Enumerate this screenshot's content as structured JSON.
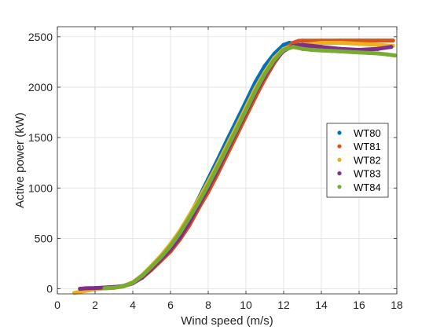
{
  "chart_data": {
    "type": "scatter",
    "title": "",
    "xlabel": "Wind speed (m/s)",
    "ylabel": "Active power (kW)",
    "xlim": [
      0,
      18
    ],
    "ylim": [
      -50,
      2600
    ],
    "xticks": [
      0,
      2,
      4,
      6,
      8,
      10,
      12,
      14,
      16,
      18
    ],
    "yticks": [
      0,
      500,
      1000,
      1500,
      2000,
      2500
    ],
    "grid": true,
    "legend_position": "right",
    "series": [
      {
        "name": "WT80",
        "color": "#0072BD",
        "x": [
          1.5,
          2.0,
          2.5,
          3.0,
          3.5,
          4.0,
          4.5,
          5.0,
          5.5,
          6.0,
          6.5,
          7.0,
          7.5,
          8.0,
          8.5,
          9.0,
          9.5,
          10.0,
          10.5,
          11.0,
          11.5,
          12.0,
          12.3,
          12.6,
          13.0,
          13.5
        ],
        "y": [
          -5,
          0,
          5,
          12,
          25,
          60,
          125,
          210,
          310,
          420,
          555,
          720,
          900,
          1090,
          1280,
          1475,
          1665,
          1855,
          2050,
          2210,
          2330,
          2420,
          2440,
          2430,
          2410,
          2400
        ]
      },
      {
        "name": "WT81",
        "color": "#D95319",
        "x": [
          1.5,
          2.0,
          2.5,
          3.0,
          3.5,
          4.0,
          4.5,
          5.0,
          5.5,
          6.0,
          6.5,
          7.0,
          7.5,
          8.0,
          8.5,
          9.0,
          9.5,
          10.0,
          10.5,
          11.0,
          11.5,
          12.0,
          12.5,
          12.8,
          13.0,
          14.0,
          15.0,
          16.0,
          17.0,
          17.8
        ],
        "y": [
          0,
          3,
          7,
          12,
          25,
          55,
          110,
          190,
          280,
          370,
          490,
          630,
          800,
          960,
          1140,
          1330,
          1520,
          1710,
          1900,
          2080,
          2240,
          2370,
          2440,
          2460,
          2462,
          2462,
          2463,
          2463,
          2463,
          2463
        ]
      },
      {
        "name": "WT82",
        "color": "#EDB120",
        "x": [
          0.9,
          1.2,
          1.5,
          2.0,
          2.5,
          3.0,
          3.5,
          4.0,
          4.5,
          5.0,
          5.5,
          6.0,
          6.5,
          7.0,
          7.5,
          8.0,
          8.5,
          9.0,
          9.5,
          10.0,
          10.5,
          11.0,
          11.5,
          12.0,
          12.5,
          13.0,
          13.5,
          14.0,
          15.0,
          16.0,
          17.0,
          17.8
        ],
        "y": [
          -40,
          -30,
          -20,
          -5,
          5,
          12,
          28,
          65,
          135,
          230,
          330,
          445,
          575,
          730,
          890,
          1060,
          1240,
          1425,
          1610,
          1800,
          1990,
          2150,
          2290,
          2380,
          2410,
          2420,
          2430,
          2440,
          2440,
          2430,
          2420,
          2410
        ]
      },
      {
        "name": "WT83",
        "color": "#7E2F8E",
        "x": [
          1.2,
          1.5,
          2.0,
          2.5,
          3.0,
          3.5,
          4.0,
          4.5,
          5.0,
          5.5,
          6.0,
          6.5,
          7.0,
          7.5,
          8.0,
          8.5,
          9.0,
          9.5,
          10.0,
          10.5,
          11.0,
          11.5,
          12.0,
          12.5,
          13.0,
          13.5,
          14.0,
          15.0,
          16.0,
          17.0,
          17.7
        ],
        "y": [
          0,
          5,
          8,
          12,
          18,
          28,
          55,
          115,
          200,
          295,
          390,
          510,
          660,
          830,
          1000,
          1180,
          1370,
          1560,
          1750,
          1940,
          2110,
          2260,
          2360,
          2410,
          2420,
          2410,
          2400,
          2380,
          2370,
          2380,
          2400
        ]
      },
      {
        "name": "WT84",
        "color": "#77AC30",
        "x": [
          2.5,
          3.0,
          3.5,
          4.0,
          4.5,
          5.0,
          5.5,
          6.0,
          6.5,
          7.0,
          7.5,
          8.0,
          8.5,
          9.0,
          9.5,
          10.0,
          10.5,
          11.0,
          11.5,
          12.0,
          12.5,
          13.0,
          13.5,
          14.0,
          14.5,
          15.0,
          15.5,
          16.0,
          16.5,
          17.0,
          17.5,
          17.9
        ],
        "y": [
          5,
          10,
          25,
          60,
          130,
          220,
          315,
          425,
          555,
          705,
          860,
          1030,
          1210,
          1395,
          1580,
          1770,
          1960,
          2130,
          2270,
          2370,
          2400,
          2380,
          2370,
          2365,
          2360,
          2355,
          2350,
          2345,
          2340,
          2335,
          2325,
          2315
        ]
      }
    ]
  }
}
